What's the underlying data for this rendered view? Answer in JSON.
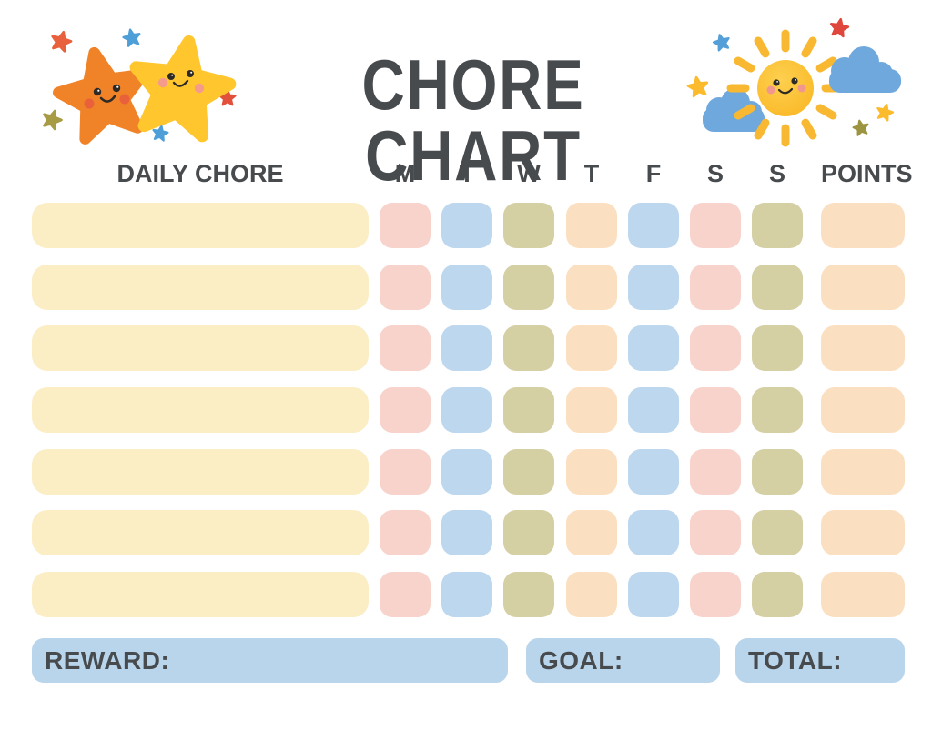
{
  "title": "CHORE CHART",
  "decor": {
    "left_icon": "smiling-stars-cluster",
    "right_icon": "smiling-sun-with-clouds"
  },
  "palette": {
    "text": "#474B4E",
    "cream": "#FBEEC5",
    "pink": "#F8D3CB",
    "blue": "#BDD7EE",
    "olive": "#D5CFA4",
    "peach": "#FBDFC1",
    "box_blue": "#B9D5EC",
    "star_orange": "#F08228",
    "star_yellow": "#FFC62E",
    "sun_yellow": "#F9B832",
    "cloud_blue": "#6FA8DC"
  },
  "table": {
    "chore_header": "DAILY CHORE",
    "day_headers": [
      "M",
      "T",
      "W",
      "T",
      "F",
      "S",
      "S"
    ],
    "points_header": "POINTS",
    "chore_color": "cream",
    "day_colors": [
      "pink",
      "blue",
      "olive",
      "peach",
      "blue",
      "pink",
      "olive"
    ],
    "points_color": "peach",
    "rows": [
      {
        "chore": "",
        "days": [
          "",
          "",
          "",
          "",
          "",
          "",
          ""
        ],
        "points": ""
      },
      {
        "chore": "",
        "days": [
          "",
          "",
          "",
          "",
          "",
          "",
          ""
        ],
        "points": ""
      },
      {
        "chore": "",
        "days": [
          "",
          "",
          "",
          "",
          "",
          "",
          ""
        ],
        "points": ""
      },
      {
        "chore": "",
        "days": [
          "",
          "",
          "",
          "",
          "",
          "",
          ""
        ],
        "points": ""
      },
      {
        "chore": "",
        "days": [
          "",
          "",
          "",
          "",
          "",
          "",
          ""
        ],
        "points": ""
      },
      {
        "chore": "",
        "days": [
          "",
          "",
          "",
          "",
          "",
          "",
          ""
        ],
        "points": ""
      },
      {
        "chore": "",
        "days": [
          "",
          "",
          "",
          "",
          "",
          "",
          ""
        ],
        "points": ""
      }
    ]
  },
  "footer": {
    "reward_label": "REWARD:",
    "goal_label": "GOAL:",
    "total_label": "TOTAL:"
  }
}
